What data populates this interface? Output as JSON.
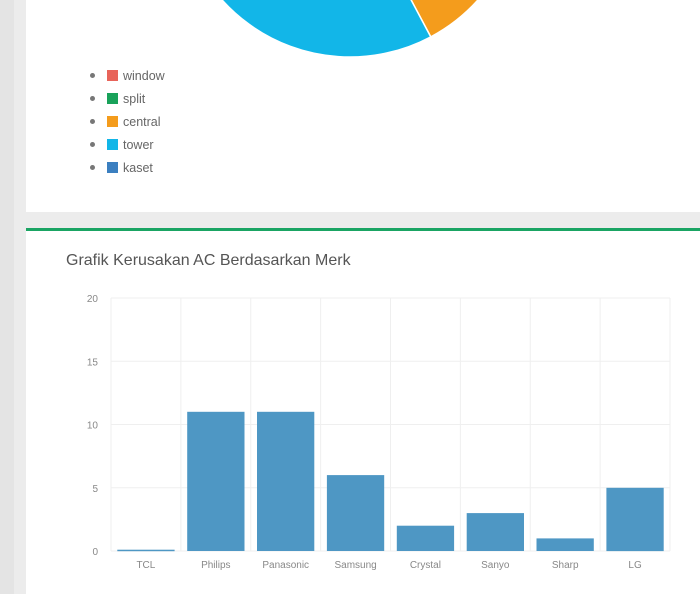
{
  "pie_legend": [
    {
      "label": "window",
      "color": "#e8645a"
    },
    {
      "label": "split",
      "color": "#19a25a"
    },
    {
      "label": "central",
      "color": "#f49c1c"
    },
    {
      "label": "tower",
      "color": "#12b6e8"
    },
    {
      "label": "kaset",
      "color": "#3b7fc0"
    }
  ],
  "chart_data": [
    {
      "type": "pie",
      "categories": [
        "window",
        "split",
        "central",
        "tower",
        "kaset"
      ],
      "colors": [
        "#e8645a",
        "#19a25a",
        "#f49c1c",
        "#12b6e8",
        "#3b7fc0"
      ],
      "legend": "bottom-left"
    },
    {
      "type": "bar",
      "title": "Grafik Kerusakan AC Berdasarkan Merk",
      "categories": [
        "TCL",
        "Philips",
        "Panasonic",
        "Samsung",
        "Crystal",
        "Sanyo",
        "Sharp",
        "LG"
      ],
      "values": [
        0.1,
        11,
        11,
        6,
        2,
        3,
        1,
        5
      ],
      "ylim": [
        0,
        20
      ],
      "yticks": [
        0,
        5,
        10,
        15,
        20
      ],
      "grid": true,
      "bar_color": "#4e97c4"
    }
  ]
}
